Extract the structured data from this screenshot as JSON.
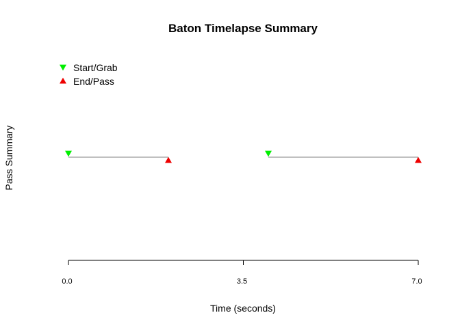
{
  "chart_data": {
    "type": "scatter",
    "title": "Baton Timelapse Summary",
    "xlabel": "Time (seconds)",
    "ylabel": "Pass Summary",
    "xlim": [
      0,
      7
    ],
    "x_ticks": [
      0,
      3.5,
      7
    ],
    "x_tick_labels": [
      "0.0",
      "3.5",
      "7.0"
    ],
    "grid": false,
    "legend_position": "top-left",
    "colors": {
      "start": "#00ee00",
      "end": "#ee0000",
      "segment": "#808080"
    },
    "series": [
      {
        "name": "Start/Grab",
        "marker": "triangle-down",
        "x": [
          0,
          4
        ]
      },
      {
        "name": "End/Pass",
        "marker": "triangle-up",
        "x": [
          2,
          7
        ]
      }
    ],
    "segments": [
      {
        "start": 0,
        "end": 2
      },
      {
        "start": 4,
        "end": 7
      }
    ]
  }
}
